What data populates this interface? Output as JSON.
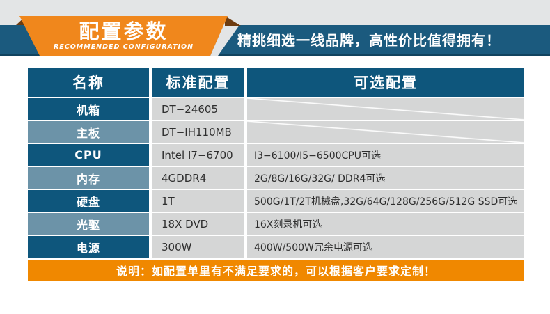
{
  "header": {
    "ribbon": {
      "title": "配置参数",
      "subtitle": "RECOMMENDED CONFIGURATION"
    },
    "tagline": "精挑细选一线品牌，高性价比值得拥有！"
  },
  "table": {
    "columns": [
      "名称",
      "标准配置",
      "可选配置"
    ],
    "rows": [
      {
        "name": "机箱",
        "standard": "DT−24605",
        "optional": ""
      },
      {
        "name": "主板",
        "standard": "DT−IH110MB",
        "optional": ""
      },
      {
        "name": "CPU",
        "standard": "Intel I7−6700",
        "optional": "I3−6100/I5−6500CPU可选"
      },
      {
        "name": "内存",
        "standard": "4GDDR4",
        "optional": "2G/8G/16G/32G/ DDR4可选"
      },
      {
        "name": "硬盘",
        "standard": "1T",
        "optional": "500G/1T/2T机械盘,32G/64G/128G/256G/512G SSD可选"
      },
      {
        "name": "光驱",
        "standard": "18X DVD",
        "optional": "16X刻录机可选"
      },
      {
        "name": "电源",
        "standard": "300W",
        "optional": "400W/500W冗余电源可选"
      }
    ]
  },
  "footer": {
    "note": "说明：如配置单里有不满足要求的，可以根据客户要求定制！"
  },
  "colors": {
    "ribbon_orange": "#f0871c",
    "fold_brown": "#6e3c10",
    "band_blue": "#1b5a7e",
    "table_header_blue": "#0e567c",
    "row_alt_blue": "#6c93a8",
    "cell_gray": "#d5d6d6",
    "note_orange": "#f08800",
    "top_strip_gray": "#e3e5e6"
  }
}
